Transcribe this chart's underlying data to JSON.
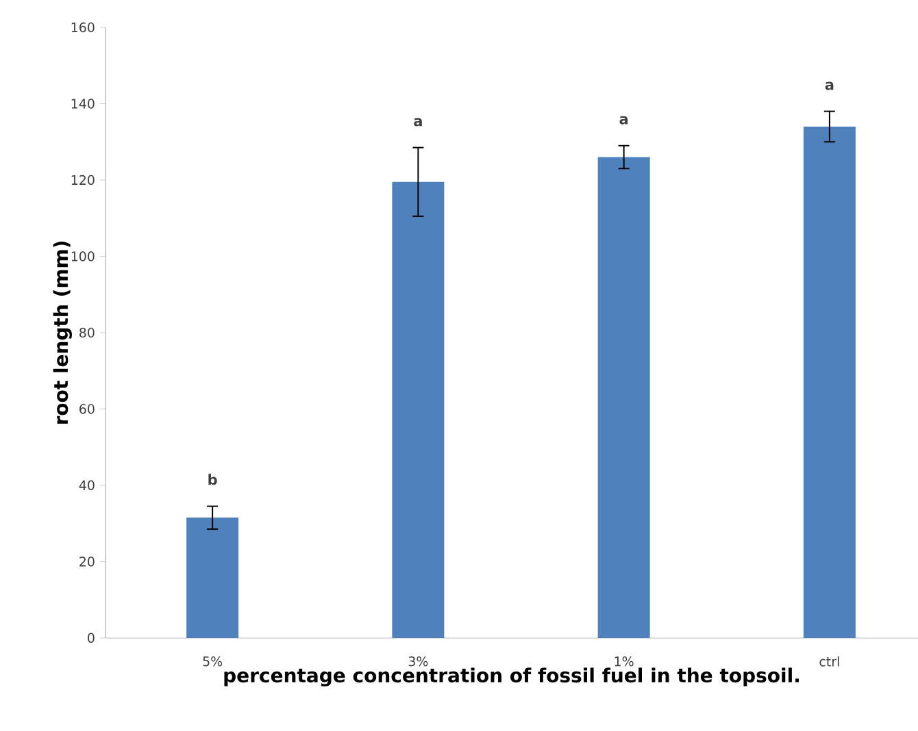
{
  "chart_data": {
    "type": "bar",
    "xlabel": "percentage concentration of fossil fuel in the topsoil.",
    "ylabel": "root length (mm)",
    "categories": [
      "5%",
      "3%",
      "1%",
      "ctrl"
    ],
    "values": [
      31.5,
      119.5,
      126,
      134
    ],
    "errors": [
      3,
      9,
      3,
      4
    ],
    "color": "#4f81bd",
    "ylim": [
      0,
      160
    ],
    "yticks": [
      0,
      20,
      40,
      60,
      80,
      100,
      120,
      140,
      160
    ],
    "annotations": [
      "b",
      "a",
      "a",
      "a"
    ]
  }
}
